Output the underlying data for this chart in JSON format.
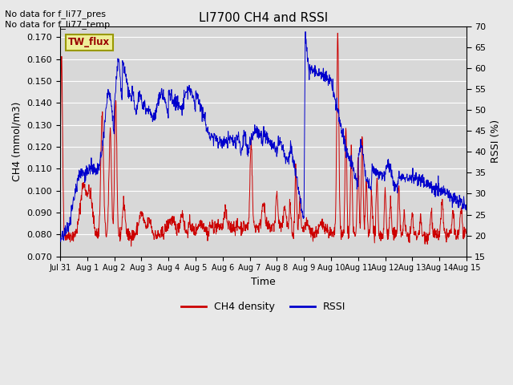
{
  "title": "LI7700 CH4 and RSSI",
  "xlabel": "Time",
  "ylabel_left": "CH4 (mmol/m3)",
  "ylabel_right": "RSSI (%)",
  "text_line1": "No data for f_li77_pres",
  "text_line2": "No data for f_li77_temp",
  "box_label": "TW_flux",
  "ylim_left": [
    0.07,
    0.175
  ],
  "ylim_right": [
    15,
    70
  ],
  "yticks_left": [
    0.07,
    0.08,
    0.09,
    0.1,
    0.11,
    0.12,
    0.13,
    0.14,
    0.15,
    0.16,
    0.17
  ],
  "yticks_right": [
    15,
    20,
    25,
    30,
    35,
    40,
    45,
    50,
    55,
    60,
    65,
    70
  ],
  "bg_color": "#e8e8e8",
  "plot_bg_color": "#d8d8d8",
  "ch4_color": "#cc0000",
  "rssi_color": "#0000cc",
  "legend_ch4": "CH4 density",
  "legend_rssi": "RSSI",
  "xtick_labels": [
    "Jul 31",
    "Aug 1",
    "Aug 2",
    "Aug 3",
    "Aug 4",
    "Aug 5",
    "Aug 6",
    "Aug 7",
    "Aug 8",
    "Aug 9",
    "Aug 10",
    "Aug 11",
    "Aug 12",
    "Aug 13",
    "Aug 14",
    "Aug 15"
  ],
  "n_points": 1500,
  "xlim": [
    0,
    15
  ],
  "box_facecolor": "#eeee99",
  "box_edgecolor": "#999900",
  "box_text_color": "#990000"
}
